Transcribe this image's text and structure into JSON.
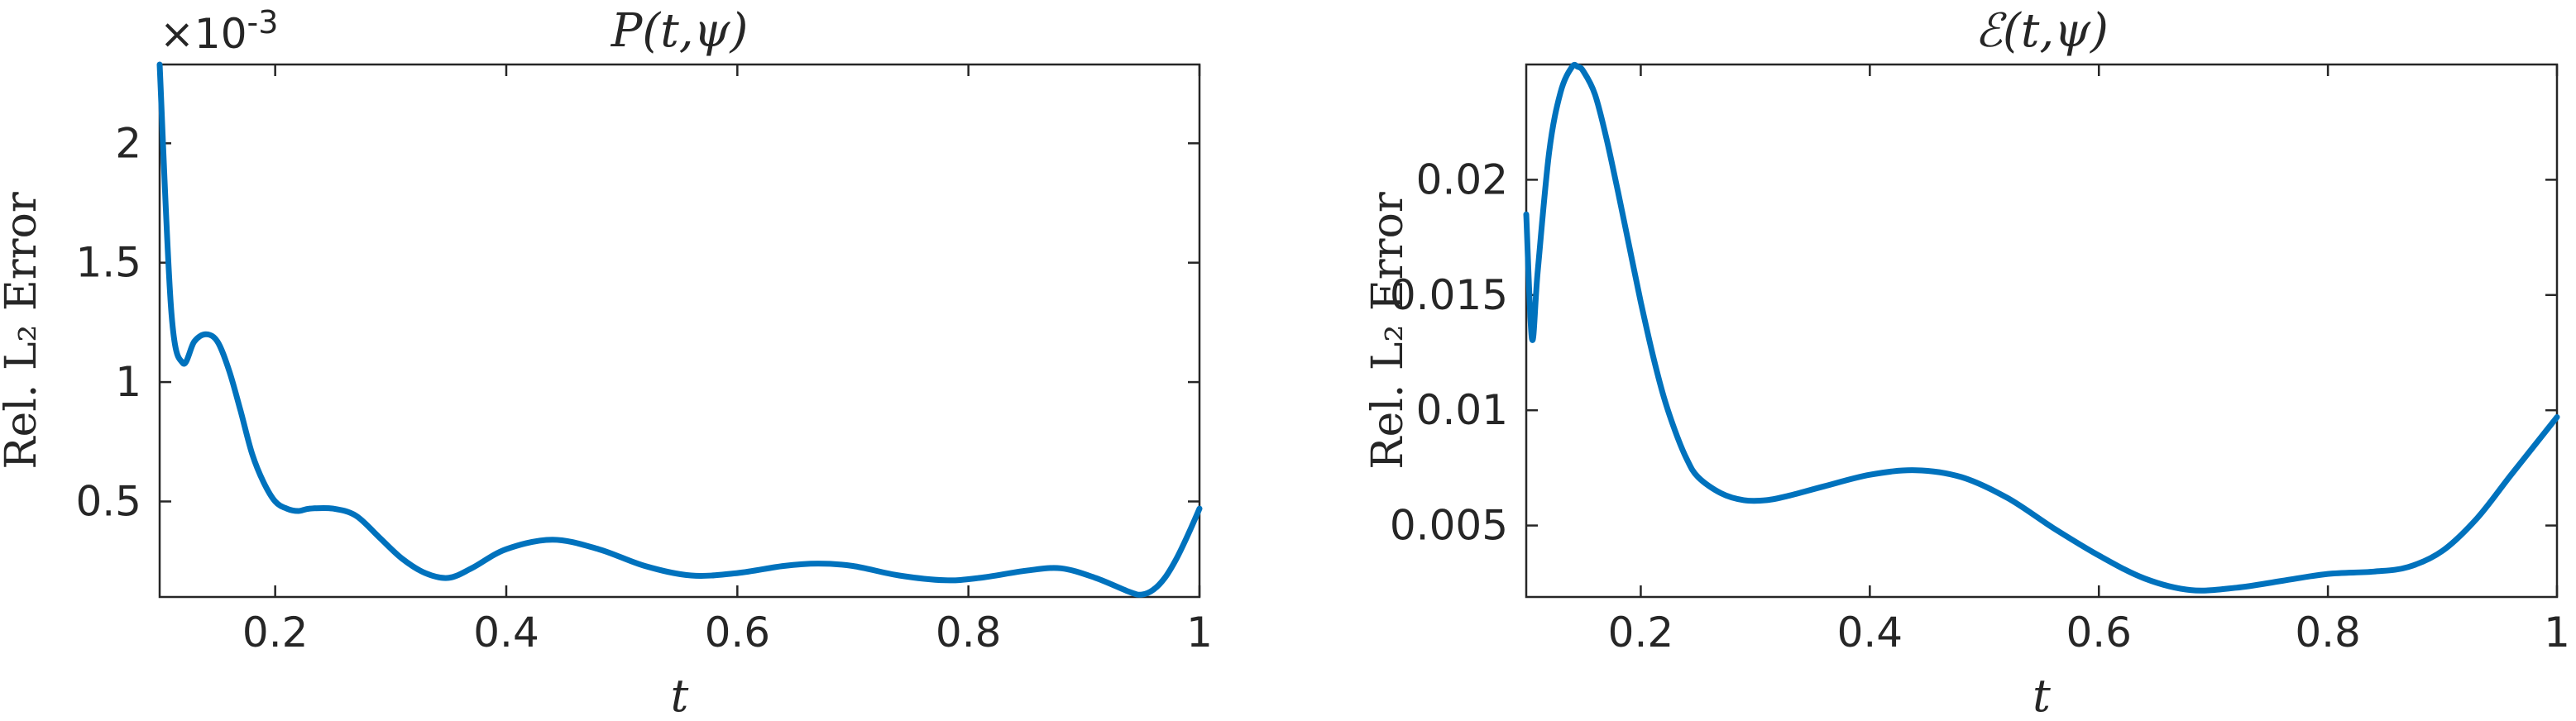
{
  "chart_data": [
    {
      "type": "line",
      "title": "P(t,ψ)",
      "xlabel": "t",
      "ylabel": "Rel. L₂ Error",
      "exponent_label": "×10",
      "exponent_power": "-3",
      "xlim": [
        0.1,
        1.0
      ],
      "ylim": [
        0.1,
        2.33
      ],
      "xticks": [
        0.2,
        0.4,
        0.6,
        0.8,
        1.0
      ],
      "xtick_labels": [
        "0.2",
        "0.4",
        "0.6",
        "0.8",
        "1"
      ],
      "yticks": [
        0.5,
        1.0,
        1.5,
        2.0
      ],
      "ytick_labels": [
        "0.5",
        "1",
        "1.5",
        "2"
      ],
      "color": "#0072BD",
      "series": [
        {
          "x": [
            0.1,
            0.11,
            0.12,
            0.13,
            0.14,
            0.15,
            0.16,
            0.17,
            0.18,
            0.19,
            0.2,
            0.21,
            0.22,
            0.23,
            0.25,
            0.27,
            0.29,
            0.31,
            0.33,
            0.35,
            0.37,
            0.4,
            0.44,
            0.48,
            0.52,
            0.56,
            0.6,
            0.64,
            0.67,
            0.7,
            0.74,
            0.78,
            0.81,
            0.85,
            0.88,
            0.91,
            0.94,
            0.95,
            0.96,
            0.97,
            0.98,
            0.99,
            1.0
          ],
          "values": [
            2.33,
            1.3,
            1.08,
            1.17,
            1.2,
            1.17,
            1.05,
            0.88,
            0.7,
            0.58,
            0.5,
            0.47,
            0.46,
            0.47,
            0.47,
            0.44,
            0.35,
            0.26,
            0.2,
            0.18,
            0.22,
            0.3,
            0.34,
            0.3,
            0.23,
            0.19,
            0.2,
            0.23,
            0.24,
            0.23,
            0.19,
            0.17,
            0.18,
            0.21,
            0.22,
            0.18,
            0.12,
            0.11,
            0.13,
            0.18,
            0.26,
            0.36,
            0.47
          ]
        }
      ]
    },
    {
      "type": "line",
      "title": "ℰ(t,ψ)",
      "xlabel": "t",
      "ylabel": "Rel. L₂ Error",
      "xlim": [
        0.1,
        1.0
      ],
      "ylim": [
        0.0019,
        0.025
      ],
      "xticks": [
        0.2,
        0.4,
        0.6,
        0.8,
        1.0
      ],
      "xtick_labels": [
        "0.2",
        "0.4",
        "0.6",
        "0.8",
        "1"
      ],
      "yticks": [
        0.005,
        0.01,
        0.015,
        0.02
      ],
      "ytick_labels": [
        "0.005",
        "0.01",
        "0.015",
        "0.02"
      ],
      "color": "#0072BD",
      "series": [
        {
          "x": [
            0.1,
            0.105,
            0.11,
            0.12,
            0.13,
            0.14,
            0.145,
            0.15,
            0.16,
            0.17,
            0.18,
            0.19,
            0.2,
            0.21,
            0.22,
            0.23,
            0.24,
            0.25,
            0.27,
            0.29,
            0.31,
            0.33,
            0.36,
            0.4,
            0.44,
            0.48,
            0.52,
            0.56,
            0.6,
            0.64,
            0.68,
            0.72,
            0.76,
            0.8,
            0.84,
            0.87,
            0.9,
            0.93,
            0.96,
            1.0
          ],
          "values": [
            0.0185,
            0.0131,
            0.016,
            0.0212,
            0.0238,
            0.0249,
            0.0249,
            0.0247,
            0.0237,
            0.0218,
            0.0195,
            0.0171,
            0.0147,
            0.0125,
            0.0106,
            0.0091,
            0.0079,
            0.0071,
            0.0064,
            0.0061,
            0.0061,
            0.0063,
            0.0067,
            0.0072,
            0.0074,
            0.0071,
            0.0062,
            0.0049,
            0.0037,
            0.0027,
            0.0022,
            0.0023,
            0.0026,
            0.0029,
            0.003,
            0.0032,
            0.0039,
            0.0053,
            0.0072,
            0.0097
          ]
        }
      ]
    }
  ]
}
